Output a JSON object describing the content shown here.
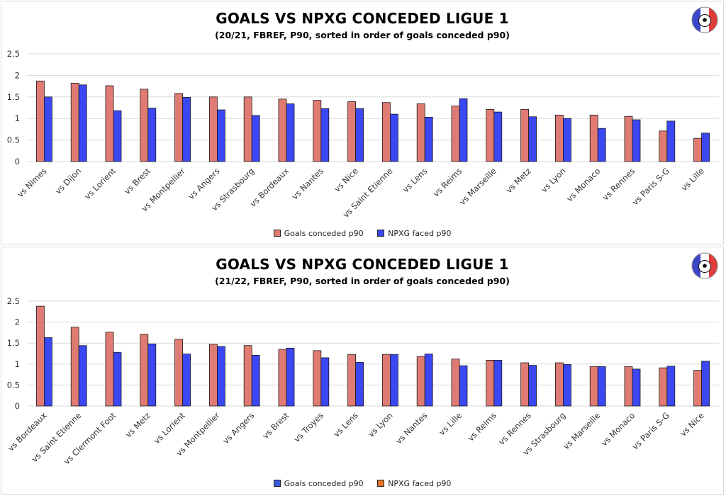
{
  "chart_data": [
    {
      "type": "bar",
      "title": "GOALS VS NPXG CONCEDED  LIGUE 1",
      "subtitle": "(20/21, FBREF, P90, sorted in order of goals conceded p90)",
      "categories": [
        "vs Nimes",
        "vs Dijon",
        "vs Lorient",
        "vs Brest",
        "vs Montpellier",
        "vs Angers",
        "vs Strasbourg",
        "vs Bordeaux",
        "vs Nantes",
        "vs Nice",
        "vs Saint Etienne",
        "vs Lens",
        "vs Reims",
        "vs Marseille",
        "vs Metz",
        "vs Lyon",
        "vs Monaco",
        "vs Rennes",
        "vs Paris S-G",
        "vs Lille"
      ],
      "series": [
        {
          "name": "Goals conceded p90",
          "color": "#e07b73",
          "values": [
            1.87,
            1.82,
            1.76,
            1.68,
            1.58,
            1.5,
            1.5,
            1.45,
            1.42,
            1.39,
            1.37,
            1.34,
            1.29,
            1.21,
            1.21,
            1.08,
            1.08,
            1.05,
            0.71,
            0.54
          ]
        },
        {
          "name": "NPXG faced p90",
          "color": "#3b47f2",
          "values": [
            1.5,
            1.78,
            1.18,
            1.24,
            1.49,
            1.2,
            1.07,
            1.34,
            1.23,
            1.23,
            1.1,
            1.03,
            1.46,
            1.15,
            1.04,
            1.0,
            0.77,
            0.97,
            0.94,
            0.66
          ]
        }
      ],
      "yticks": [
        "0",
        "0.5",
        "1",
        "1.5",
        "2",
        "2.5"
      ],
      "ylim": [
        0,
        2.5
      ],
      "grid": true,
      "legend_position": "bottom"
    },
    {
      "type": "bar",
      "title": "GOALS VS NPXG CONCEDED  LIGUE 1",
      "subtitle": "(21/22, FBREF, P90, sorted in order of goals conceded p90)",
      "categories": [
        "vs Bordeaux",
        "vs Saint Etienne",
        "vs Clermont Foot",
        "vs Metz",
        "vs Lorient",
        "vs Montpellier",
        "vs Angers",
        "vs Brest",
        "vs Troyes",
        "vs Lens",
        "vs Lyon",
        "vs Nantes",
        "vs Lille",
        "vs Reims",
        "vs Rennes",
        "vs Strasbourg",
        "vs Marseille",
        "vs Monaco",
        "vs Paris S-G",
        "vs Nice"
      ],
      "series": [
        {
          "name": "Goals conceded p90",
          "color": "#e07b73",
          "values": [
            2.38,
            1.88,
            1.76,
            1.71,
            1.59,
            1.47,
            1.44,
            1.35,
            1.32,
            1.23,
            1.23,
            1.18,
            1.12,
            1.09,
            1.03,
            1.03,
            0.94,
            0.94,
            0.91,
            0.85
          ]
        },
        {
          "name": "NPXG faced p90",
          "color": "#3b47f2",
          "values": [
            1.63,
            1.44,
            1.28,
            1.48,
            1.24,
            1.42,
            1.21,
            1.38,
            1.15,
            1.04,
            1.23,
            1.24,
            0.96,
            1.09,
            0.97,
            0.99,
            0.94,
            0.88,
            0.95,
            1.07
          ]
        }
      ],
      "legend_entries": [
        {
          "label": "Goals conceded p90",
          "color": "#3b5bdb"
        },
        {
          "label": "NPXG faced p90",
          "color": "#e8742b"
        }
      ],
      "yticks": [
        "0",
        "0.5",
        "1",
        "1.5",
        "2",
        "2.5"
      ],
      "ylim": [
        0,
        2.5
      ],
      "grid": true,
      "legend_position": "bottom"
    }
  ]
}
